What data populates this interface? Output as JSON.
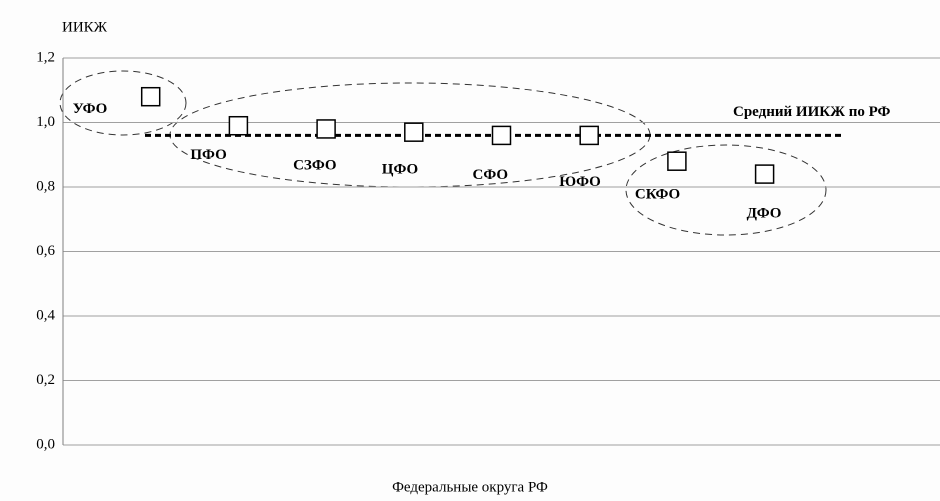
{
  "chart_data": {
    "type": "scatter",
    "y_label": "ИИКЖ",
    "x_label": "Федеральные округа РФ",
    "categories": [
      "УФО",
      "ПФО",
      "СЗФО",
      "ЦФО",
      "СФО",
      "ЮФО",
      "СКФО",
      "ДФО"
    ],
    "values": [
      1.08,
      0.99,
      0.98,
      0.97,
      0.96,
      0.96,
      0.88,
      0.84
    ],
    "average": {
      "value": 0.96,
      "label": "Средний ИИКЖ по РФ"
    },
    "ylim": [
      0,
      1.2
    ],
    "yticks": [
      {
        "value": 0,
        "label": "0,0"
      },
      {
        "value": 0.2,
        "label": "0,2"
      },
      {
        "value": 0.4,
        "label": "0,4"
      },
      {
        "value": 0.6,
        "label": "0,6"
      },
      {
        "value": 0.8,
        "label": "0,8"
      },
      {
        "value": 1.0,
        "label": "1,0"
      },
      {
        "value": 1.2,
        "label": "1,2"
      }
    ],
    "grid": true
  }
}
